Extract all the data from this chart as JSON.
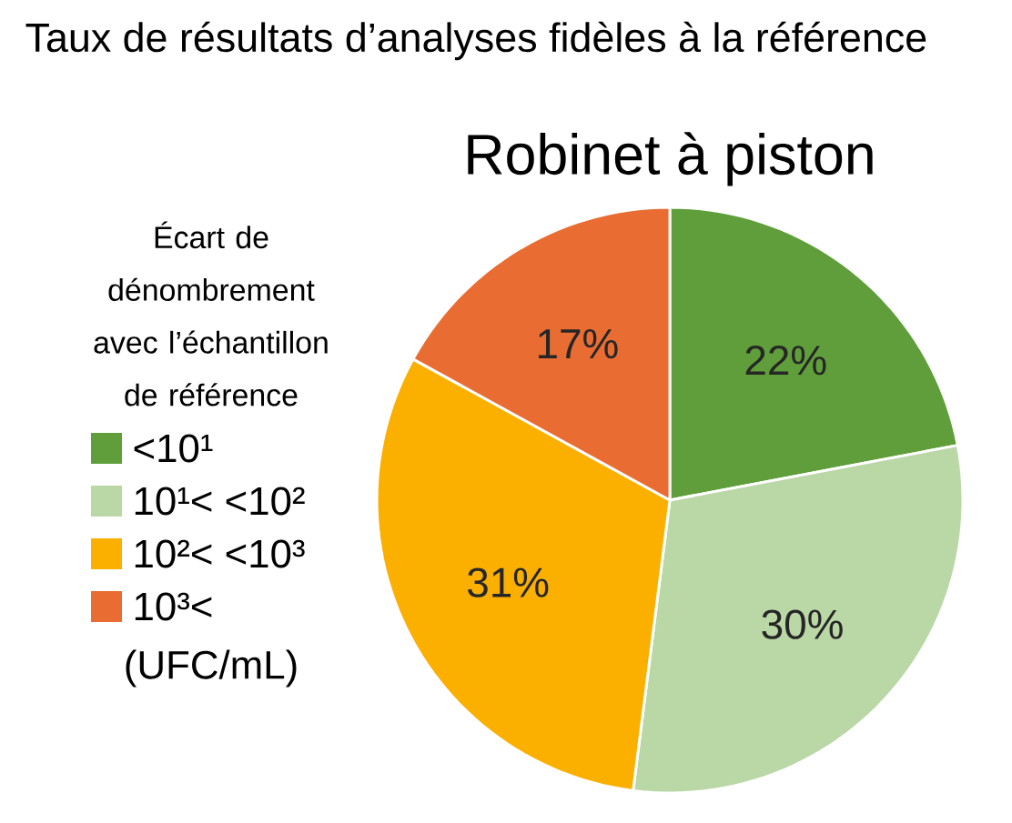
{
  "chart_data": {
    "type": "pie",
    "title": "Taux de résultats d’analyses fidèles à la référence",
    "subtitle": "Robinet à piston",
    "legend_title": "Écart de dénombrement avec l’échantillon de référence",
    "categories": [
      "<10¹",
      "10¹< <10²",
      "10²< <10³",
      "10³<"
    ],
    "values": [
      22,
      30,
      31,
      17
    ],
    "value_labels": [
      "22%",
      "30%",
      "31%",
      "17%"
    ],
    "colors": [
      "#5f9e3a",
      "#bad7a6",
      "#fbb000",
      "#e96d33"
    ],
    "legend": "left",
    "annotations": [
      "(UFC/mL)"
    ]
  }
}
